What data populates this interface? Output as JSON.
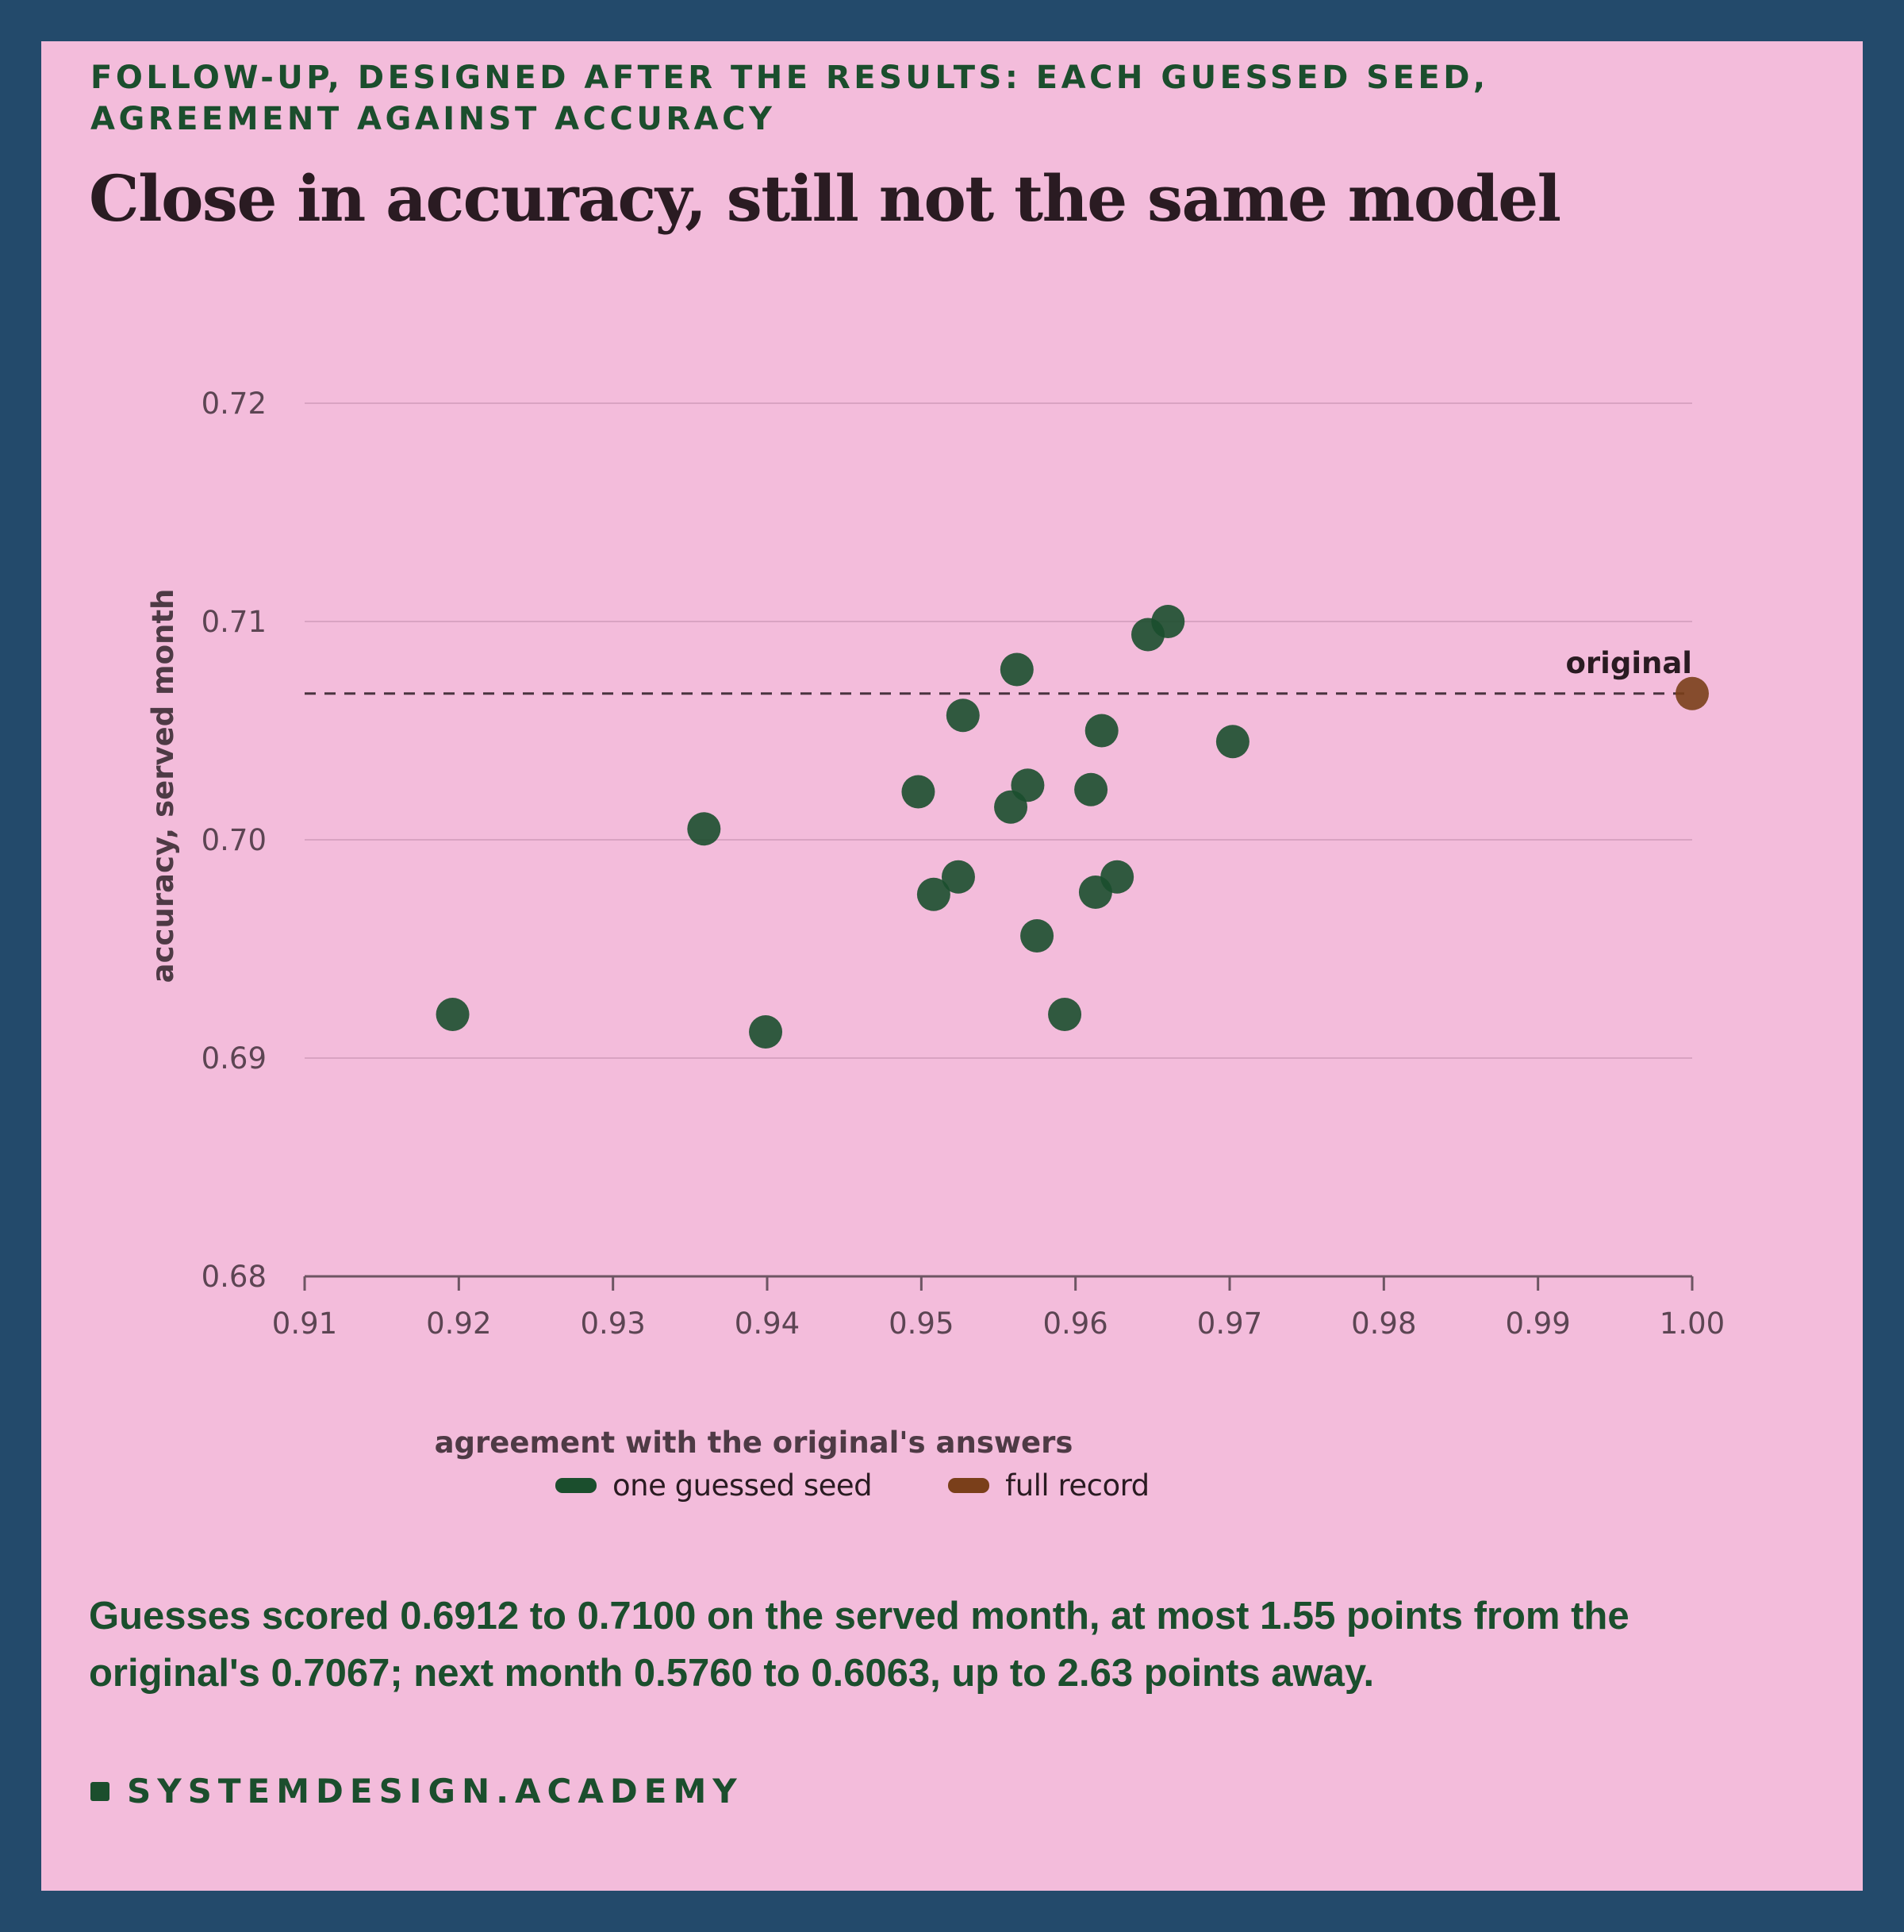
{
  "kicker": "FOLLOW-UP, DESIGNED AFTER THE RESULTS: EACH GUESSED SEED, AGREEMENT AGAINST ACCURACY",
  "title": "Close in accuracy, still not the same model",
  "summary": "Guesses scored 0.6912 to 0.7100 on the served month, at most 1.55 points from the original's 0.7067; next month 0.5760 to 0.6063, up to 2.63 points away.",
  "footer": {
    "brand": "SYSTEMDESIGN.ACADEMY"
  },
  "colors": {
    "guessed": "#1b4e2d",
    "original": "#7a3f1a",
    "frame": "#234a6b",
    "card": "#f3bcdb"
  },
  "chart_data": {
    "type": "scatter",
    "xlabel": "agreement with the original's answers",
    "ylabel": "accuracy, served month",
    "xlim": [
      0.91,
      1.0
    ],
    "ylim": [
      0.68,
      0.72
    ],
    "x_ticks": [
      "0.91",
      "0.92",
      "0.93",
      "0.94",
      "0.95",
      "0.96",
      "0.97",
      "0.98",
      "0.99",
      "1.00"
    ],
    "y_ticks": [
      "0.68",
      "0.69",
      "0.70",
      "0.71",
      "0.72"
    ],
    "grid": "horizontal",
    "legend_position": "bottom-center",
    "reference_line": {
      "y": 0.7067,
      "label": "original"
    },
    "series": [
      {
        "name": "one guessed seed",
        "points": [
          {
            "x": 0.9196,
            "y": 0.692
          },
          {
            "x": 0.9359,
            "y": 0.7005
          },
          {
            "x": 0.9399,
            "y": 0.6912
          },
          {
            "x": 0.9498,
            "y": 0.7022
          },
          {
            "x": 0.9508,
            "y": 0.6975
          },
          {
            "x": 0.9524,
            "y": 0.6983
          },
          {
            "x": 0.9527,
            "y": 0.7057
          },
          {
            "x": 0.9558,
            "y": 0.7015
          },
          {
            "x": 0.9562,
            "y": 0.7078
          },
          {
            "x": 0.9569,
            "y": 0.7025
          },
          {
            "x": 0.9575,
            "y": 0.6956
          },
          {
            "x": 0.9593,
            "y": 0.692
          },
          {
            "x": 0.961,
            "y": 0.7023
          },
          {
            "x": 0.9613,
            "y": 0.6976
          },
          {
            "x": 0.9617,
            "y": 0.705
          },
          {
            "x": 0.9627,
            "y": 0.6983
          },
          {
            "x": 0.9647,
            "y": 0.7094
          },
          {
            "x": 0.966,
            "y": 0.71
          },
          {
            "x": 0.9702,
            "y": 0.7045
          }
        ]
      },
      {
        "name": "full record",
        "points": [
          {
            "x": 1.0,
            "y": 0.7067
          }
        ]
      }
    ]
  }
}
